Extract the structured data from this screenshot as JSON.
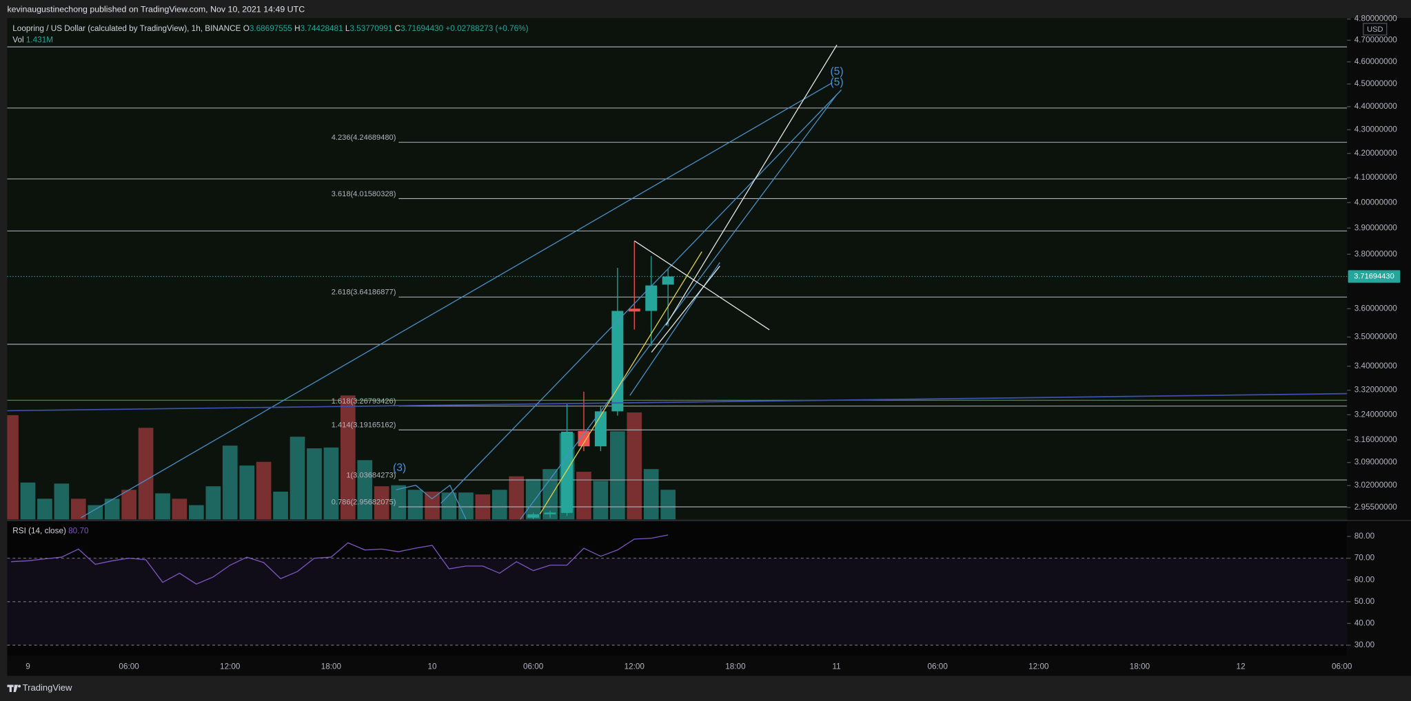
{
  "header": {
    "title": "kevinaugustinechong published on TradingView.com, Nov 10, 2021 14:49 UTC"
  },
  "footer": {
    "brand": "TradingView"
  },
  "chart_data": [
    {
      "type": "candlestick",
      "legend": {
        "symbol": "Loopring / US Dollar (calculated by TradingView), 1h, BINANCE",
        "ohlc": [
          {
            "label": "O",
            "value": "3.68697555"
          },
          {
            "label": "H",
            "value": "3.74428481"
          },
          {
            "label": "L",
            "value": "3.53770991"
          },
          {
            "label": "C",
            "value": "3.71694430"
          }
        ],
        "change": "+0.02788273 (+0.76%)"
      },
      "currency": "USD",
      "last_label": "3.71694430",
      "categories": [
        null,
        "9",
        null,
        null,
        null,
        null,
        null,
        "06:00",
        null,
        null,
        null,
        null,
        null,
        "12:00",
        null,
        null,
        null,
        null,
        null,
        "18:00",
        null,
        null,
        null,
        null,
        null,
        "10",
        null,
        null,
        null,
        null,
        null,
        "06:00",
        null,
        null,
        null,
        null,
        null,
        "12:00",
        null,
        null,
        null,
        null,
        null,
        "18:00",
        null,
        null,
        null,
        null,
        null,
        "11",
        null,
        null,
        null,
        null,
        null,
        "06:00",
        null,
        null,
        null,
        null,
        null,
        "12:00",
        null,
        null,
        null,
        null,
        null,
        "18:00",
        null,
        null,
        null,
        null,
        null,
        "12",
        null,
        null,
        null,
        null,
        null,
        "06:00"
      ],
      "open": [
        null,
        null,
        null,
        null,
        null,
        null,
        null,
        null,
        null,
        null,
        null,
        null,
        null,
        null,
        null,
        null,
        null,
        null,
        null,
        null,
        null,
        null,
        null,
        null,
        null,
        null,
        null,
        null,
        null,
        null,
        null,
        2.925,
        2.935,
        2.939,
        3.188,
        3.14,
        3.251,
        3.6,
        3.592,
        3.68697555,
        null,
        null,
        null,
        null,
        null,
        null,
        null,
        null,
        null,
        null,
        null,
        null,
        null,
        null,
        null,
        null,
        null,
        null,
        null,
        null,
        null,
        null,
        null,
        null,
        null,
        null,
        null,
        null,
        null,
        null,
        null,
        null,
        null,
        null,
        null,
        null,
        null,
        null,
        null,
        null
      ],
      "high": [
        null,
        null,
        null,
        null,
        null,
        null,
        null,
        null,
        null,
        null,
        null,
        null,
        null,
        null,
        null,
        null,
        null,
        null,
        null,
        null,
        null,
        null,
        null,
        null,
        null,
        null,
        null,
        null,
        null,
        null,
        null,
        2.94,
        2.945,
        3.274,
        3.315,
        3.27,
        3.749,
        3.851,
        3.793,
        3.74428481,
        null,
        null,
        null,
        null,
        null,
        null,
        null,
        null,
        null,
        null,
        null,
        null,
        null,
        null,
        null,
        null,
        null,
        null,
        null,
        null,
        null,
        null,
        null,
        null,
        null,
        null,
        null,
        null,
        null,
        null,
        null,
        null,
        null,
        null,
        null,
        null,
        null,
        null,
        null,
        null
      ],
      "low": [
        null,
        null,
        null,
        null,
        null,
        null,
        null,
        null,
        null,
        null,
        null,
        null,
        null,
        null,
        null,
        null,
        null,
        null,
        null,
        null,
        null,
        null,
        null,
        null,
        null,
        null,
        null,
        null,
        null,
        null,
        null,
        2.921,
        2.925,
        2.93,
        3.125,
        3.125,
        3.237,
        3.526,
        3.469,
        3.53770991,
        null,
        null,
        null,
        null,
        null,
        null,
        null,
        null,
        null,
        null,
        null,
        null,
        null,
        null,
        null,
        null,
        null,
        null,
        null,
        null,
        null,
        null,
        null,
        null,
        null,
        null,
        null,
        null,
        null,
        null,
        null,
        null,
        null,
        null,
        null,
        null,
        null,
        null,
        null,
        null
      ],
      "close": [
        null,
        null,
        null,
        null,
        null,
        null,
        null,
        null,
        null,
        null,
        null,
        null,
        null,
        null,
        null,
        null,
        null,
        null,
        null,
        null,
        null,
        null,
        null,
        null,
        null,
        null,
        null,
        null,
        null,
        null,
        null,
        2.935,
        2.94,
        3.186,
        3.14,
        3.251,
        3.592,
        3.59,
        3.684,
        3.7169443,
        null,
        null,
        null,
        null,
        null,
        null,
        null,
        null,
        null,
        null,
        null,
        null,
        null,
        null,
        null,
        null,
        null,
        null,
        null,
        null,
        null,
        null,
        null,
        null,
        null,
        null,
        null,
        null,
        null,
        null,
        null,
        null,
        null,
        null,
        null,
        null,
        null,
        null,
        null,
        null
      ],
      "up_color": "#26a69a",
      "down_color": "#ef5350",
      "log": true,
      "ylim": [
        2.92,
        4.805
      ],
      "yticks": [
        {
          "value": 4.8,
          "label": "4.80000000"
        },
        {
          "value": 4.7,
          "label": "4.70000000"
        },
        {
          "value": 4.6,
          "label": "4.60000000"
        },
        {
          "value": 4.5,
          "label": "4.50000000"
        },
        {
          "value": 4.4,
          "label": "4.40000000"
        },
        {
          "value": 4.3,
          "label": "4.30000000"
        },
        {
          "value": 4.2,
          "label": "4.20000000"
        },
        {
          "value": 4.1,
          "label": "4.10000000"
        },
        {
          "value": 4.0,
          "label": "4.00000000"
        },
        {
          "value": 3.9,
          "label": "3.90000000"
        },
        {
          "value": 3.8,
          "label": "3.80000000"
        },
        {
          "value": 3.6,
          "label": "3.60000000"
        },
        {
          "value": 3.5,
          "label": "3.50000000"
        },
        {
          "value": 3.4,
          "label": "3.40000000"
        },
        {
          "value": 3.32,
          "label": "3.32000000"
        },
        {
          "value": 3.24,
          "label": "3.24000000"
        },
        {
          "value": 3.16,
          "label": "3.16000000"
        },
        {
          "value": 3.09,
          "label": "3.09000000"
        },
        {
          "value": 3.02,
          "label": "3.02000000"
        },
        {
          "value": 2.955,
          "label": "2.95500000"
        }
      ],
      "levels": [
        {
          "value": 4.669,
          "color": "#b2b5be"
        },
        {
          "value": 4.394,
          "color": "#b2b5be"
        },
        {
          "value": 4.095,
          "color": "#b2b5be"
        },
        {
          "value": 3.889,
          "color": "#b2b5be"
        },
        {
          "value": 3.475,
          "color": "#b2b5be"
        },
        {
          "value": 3.287,
          "color": "#4caf50"
        }
      ],
      "fib_levels": [
        {
          "value": 4.2468948,
          "label": "4.236(4.24689480)"
        },
        {
          "value": 4.01580328,
          "label": "3.618(4.01580328)"
        },
        {
          "value": 3.64186877,
          "label": "2.618(3.64186877)"
        },
        {
          "value": 3.26793426,
          "label": "1.618(3.26793426)"
        },
        {
          "value": 3.19165162,
          "label": "1.414(3.19165162)"
        },
        {
          "value": 3.03684273,
          "label": "1(3.03684273)"
        },
        {
          "value": 2.95682075,
          "label": "0.786(2.95682075)"
        }
      ],
      "wave_labels": [
        "(3)",
        "(5)",
        "(5)"
      ]
    },
    {
      "type": "bar",
      "name": "Vol",
      "last_label": "1.431M",
      "values": [
        5030000,
        1780000,
        1000000,
        1730000,
        1000000,
        690000,
        1000000,
        1430000,
        4420000,
        1260000,
        1000000,
        690000,
        1600000,
        3560000,
        2600000,
        2780000,
        1340000,
        3990000,
        3430000,
        3470000,
        5980000,
        2860000,
        1600000,
        1650000,
        1430000,
        1340000,
        1300000,
        1300000,
        1210000,
        1430000,
        2080000,
        1950000,
        2430000,
        4160000,
        2300000,
        1860000,
        4250000,
        5160000,
        2430000,
        1431000,
        null,
        null,
        null,
        null,
        null,
        null,
        null,
        null,
        null,
        null,
        null,
        null,
        null,
        null,
        null,
        null,
        null,
        null,
        null,
        null,
        null,
        null,
        null,
        null,
        null,
        null,
        null,
        null,
        null,
        null,
        null,
        null,
        null,
        null,
        null,
        null,
        null,
        null,
        null,
        null
      ],
      "colors": [
        "#7a2f30",
        "#1e6660",
        "#1e6660",
        "#1e6660",
        "#7a2f30",
        "#1e6660",
        "#1e6660",
        "#7a2f30",
        "#7a2f30",
        "#1e6660",
        "#7a2f30",
        "#1e6660",
        "#1e6660",
        "#1e6660",
        "#1e6660",
        "#7a2f30",
        "#1e6660",
        "#1e6660",
        "#1e6660",
        "#1e6660",
        "#7a2f30",
        "#1e6660",
        "#7a2f30",
        "#1e6660",
        "#1e6660",
        "#7a2f30",
        "#1e6660",
        "#1e6660",
        "#7a2f30",
        "#1e6660",
        "#7a2f30",
        "#1e6660",
        "#1e6660",
        "#1e6660",
        "#7a2f30",
        "#1e6660",
        "#1e6660",
        "#7a2f30",
        "#1e6660",
        "#1e6660",
        null,
        null,
        null,
        null,
        null,
        null,
        null,
        null,
        null,
        null,
        null,
        null,
        null,
        null,
        null,
        null,
        null,
        null,
        null,
        null,
        null,
        null,
        null,
        null,
        null,
        null,
        null,
        null,
        null,
        null,
        null,
        null,
        null,
        null,
        null,
        null,
        null,
        null,
        null,
        null
      ]
    },
    {
      "type": "line",
      "name": "RSI (14, close)",
      "last_label": "80.70",
      "color": "#7e57c2",
      "values": [
        68.4,
        68.8,
        69.7,
        70.5,
        74.2,
        67.2,
        68.8,
        70,
        69.3,
        58.9,
        63.1,
        58.1,
        61.4,
        66.8,
        70.5,
        68,
        60.6,
        63.9,
        70,
        70.5,
        77.1,
        73.8,
        74.2,
        73,
        74.6,
        75.9,
        65.1,
        66.4,
        66.4,
        63.1,
        68.4,
        64.3,
        66.8,
        66.8,
        74.6,
        70.9,
        73.8,
        78.8,
        79.2,
        80.7,
        null,
        null,
        null,
        null,
        null,
        null,
        null,
        null,
        null,
        null,
        null,
        null,
        null,
        null,
        null,
        null,
        null,
        null,
        null,
        null,
        null,
        null,
        null,
        null,
        null,
        null,
        null,
        null,
        null,
        null,
        null,
        null,
        null,
        null,
        null,
        null,
        null,
        null,
        null,
        null
      ],
      "ylim": [
        25,
        87
      ],
      "yticks": [
        {
          "value": 80,
          "label": "80.00"
        },
        {
          "value": 70,
          "label": "70.00"
        },
        {
          "value": 60,
          "label": "60.00"
        },
        {
          "value": 50,
          "label": "50.00"
        },
        {
          "value": 40,
          "label": "40.00"
        },
        {
          "value": 30,
          "label": "30.00"
        }
      ],
      "band": [
        30,
        70
      ],
      "dashed_levels": [
        70,
        50,
        30
      ]
    }
  ]
}
